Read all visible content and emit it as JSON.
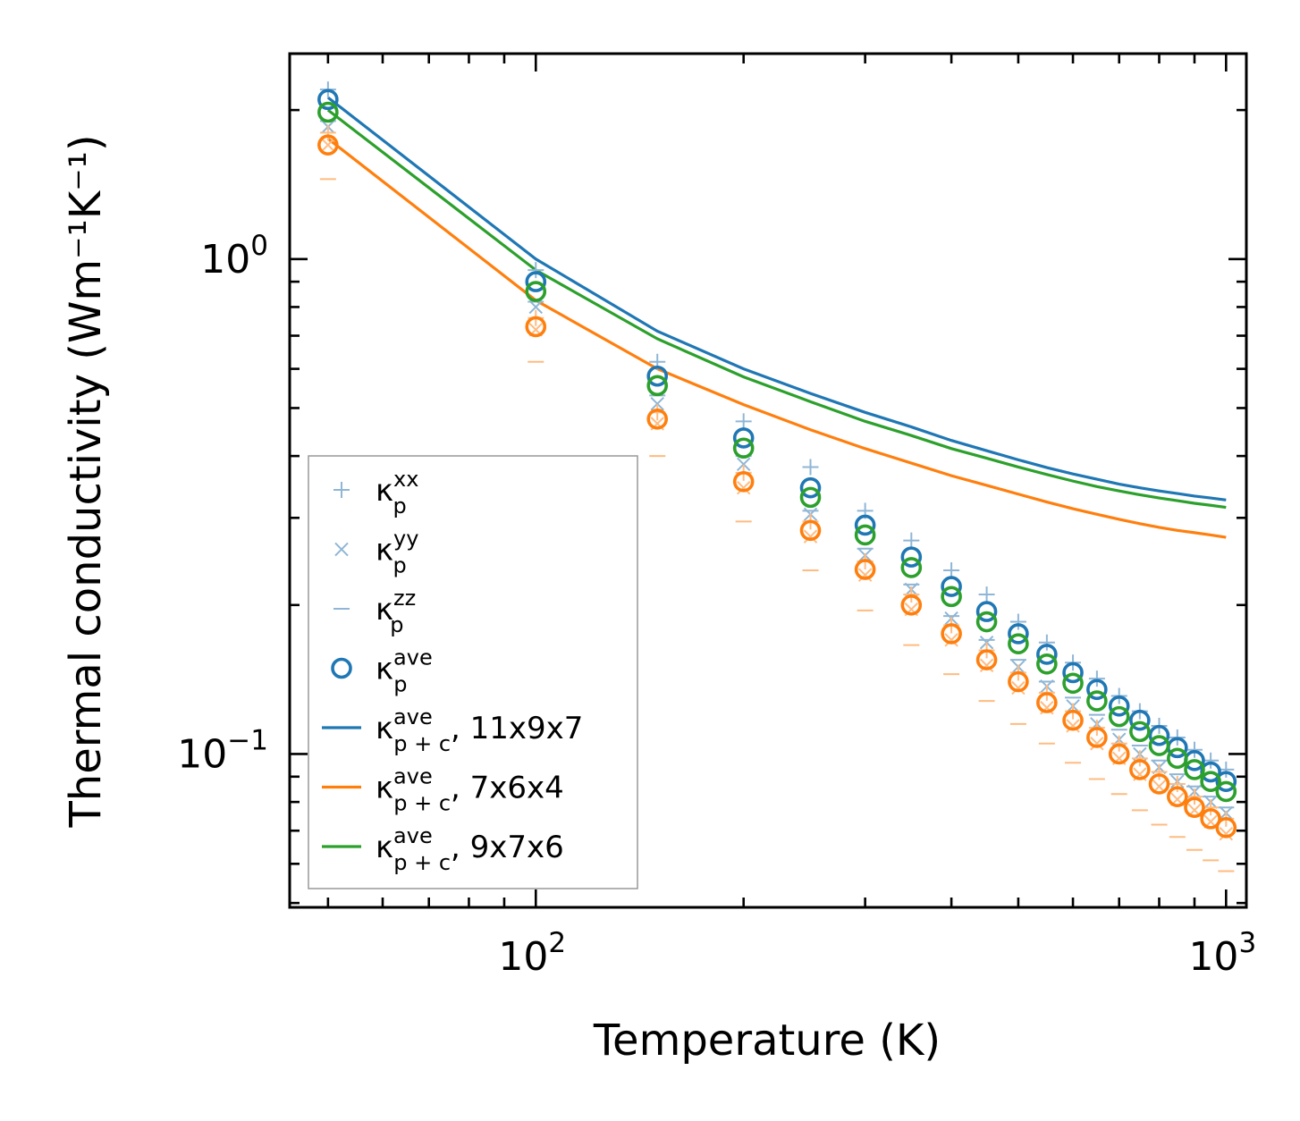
{
  "chart_data": {
    "type": "scatter",
    "title": "",
    "xlabel": "Temperature (K)",
    "ylabel": "Thermal conductivity (Wm⁻¹K⁻¹)",
    "xscale": "log",
    "yscale": "log",
    "xlim": [
      44,
      1070
    ],
    "ylim": [
      0.049,
      2.6
    ],
    "x_ticks": [
      {
        "value": 100,
        "base": "10",
        "exp": "2"
      },
      {
        "value": 1000,
        "base": "10",
        "exp": "3"
      }
    ],
    "y_ticks": [
      {
        "value": 1,
        "base": "10",
        "exp": "0"
      },
      {
        "value": 0.1,
        "base": "10",
        "exp": "−1"
      }
    ],
    "x": [
      50,
      100,
      150,
      200,
      250,
      300,
      350,
      400,
      450,
      500,
      550,
      600,
      650,
      700,
      750,
      800,
      850,
      900,
      950,
      1000
    ],
    "colors": {
      "blue": "#1f77b4",
      "orange": "#ff7f0e",
      "green": "#2ca02c",
      "light_blue": "#8fb6d6",
      "light_orange": "#ffbb80"
    },
    "point_series": [
      {
        "name": "κ_p^xx 11x9x7",
        "marker": "plus",
        "color": "#8fb6d6",
        "values": [
          2.2,
          0.95,
          0.62,
          0.47,
          0.38,
          0.31,
          0.27,
          0.235,
          0.21,
          0.185,
          0.168,
          0.153,
          0.142,
          0.131,
          0.122,
          0.114,
          0.108,
          0.102,
          0.097,
          0.093
        ]
      },
      {
        "name": "κ_p^yy 11x9x7",
        "marker": "x",
        "color": "#8fb6d6",
        "values": [
          1.85,
          0.8,
          0.51,
          0.385,
          0.305,
          0.252,
          0.215,
          0.188,
          0.168,
          0.15,
          0.137,
          0.125,
          0.115,
          0.107,
          0.1,
          0.094,
          0.088,
          0.084,
          0.08,
          0.076
        ]
      },
      {
        "name": "κ_p^zz 11x9x7",
        "marker": "dash",
        "color": "#8fb6d6",
        "values": [
          1.9,
          0.82,
          0.53,
          0.4,
          0.31,
          0.26,
          0.22,
          0.19,
          0.17,
          0.155,
          0.14,
          0.13,
          0.12,
          0.112,
          0.104,
          0.097,
          0.091,
          0.086,
          0.082,
          0.078
        ]
      },
      {
        "name": "κ_p^xx 7x6x4",
        "marker": "plus",
        "color": "#ffbb80",
        "values": [
          1.8,
          0.76,
          0.49,
          0.37,
          0.295,
          0.245,
          0.21,
          0.182,
          0.162,
          0.146,
          0.133,
          0.122,
          0.113,
          0.105,
          0.098,
          0.092,
          0.087,
          0.082,
          0.078,
          0.074
        ]
      },
      {
        "name": "κ_p^yy 7x6x4",
        "marker": "x",
        "color": "#ffbb80",
        "values": [
          1.7,
          0.72,
          0.465,
          0.345,
          0.275,
          0.23,
          0.196,
          0.17,
          0.151,
          0.136,
          0.124,
          0.114,
          0.105,
          0.098,
          0.091,
          0.086,
          0.081,
          0.077,
          0.073,
          0.069
        ]
      },
      {
        "name": "κ_p^zz 7x6x4",
        "marker": "dash",
        "color": "#ffbb80",
        "values": [
          1.45,
          0.62,
          0.4,
          0.295,
          0.235,
          0.195,
          0.166,
          0.145,
          0.128,
          0.115,
          0.105,
          0.096,
          0.089,
          0.083,
          0.077,
          0.072,
          0.068,
          0.064,
          0.061,
          0.058
        ]
      },
      {
        "name": "κ_p^ave 11x9x7",
        "marker": "circle",
        "color": "#1f77b4",
        "values": [
          2.1,
          0.9,
          0.58,
          0.435,
          0.345,
          0.29,
          0.25,
          0.218,
          0.194,
          0.175,
          0.159,
          0.146,
          0.135,
          0.125,
          0.117,
          0.109,
          0.103,
          0.097,
          0.092,
          0.088
        ]
      },
      {
        "name": "κ_p^ave 9x7x6",
        "marker": "circle",
        "color": "#2ca02c",
        "values": [
          1.98,
          0.86,
          0.555,
          0.415,
          0.33,
          0.277,
          0.238,
          0.208,
          0.185,
          0.167,
          0.152,
          0.139,
          0.128,
          0.119,
          0.111,
          0.104,
          0.098,
          0.093,
          0.088,
          0.084
        ]
      },
      {
        "name": "κ_p^ave 7x6x4",
        "marker": "circle",
        "color": "#ff7f0e",
        "values": [
          1.7,
          0.73,
          0.475,
          0.355,
          0.283,
          0.236,
          0.2,
          0.175,
          0.155,
          0.14,
          0.127,
          0.117,
          0.108,
          0.1,
          0.093,
          0.087,
          0.082,
          0.078,
          0.074,
          0.071
        ]
      }
    ],
    "line_series": [
      {
        "name": "κ_p+c^ave, 11x9x7",
        "color": "#1f77b4",
        "values": [
          2.12,
          1.0,
          0.715,
          0.6,
          0.535,
          0.49,
          0.458,
          0.43,
          0.41,
          0.393,
          0.379,
          0.368,
          0.359,
          0.351,
          0.345,
          0.34,
          0.336,
          0.332,
          0.329,
          0.326
        ]
      },
      {
        "name": "κ_p+c^ave, 9x7x6",
        "color": "#2ca02c",
        "values": [
          2.0,
          0.95,
          0.69,
          0.578,
          0.515,
          0.47,
          0.44,
          0.414,
          0.396,
          0.38,
          0.367,
          0.356,
          0.347,
          0.34,
          0.334,
          0.329,
          0.325,
          0.321,
          0.318,
          0.315
        ]
      },
      {
        "name": "κ_p+c^ave, 7x6x4",
        "color": "#ff7f0e",
        "values": [
          1.75,
          0.825,
          0.6,
          0.508,
          0.452,
          0.414,
          0.387,
          0.365,
          0.349,
          0.335,
          0.323,
          0.313,
          0.305,
          0.298,
          0.292,
          0.287,
          0.283,
          0.28,
          0.277,
          0.274
        ]
      }
    ],
    "legend": {
      "position": "lower-left",
      "entries": [
        {
          "marker": "plus",
          "color": "#8fb6d6",
          "label": "κ",
          "sub": "p",
          "sup": "xx",
          "suffix": ""
        },
        {
          "marker": "x",
          "color": "#8fb6d6",
          "label": "κ",
          "sub": "p",
          "sup": "yy",
          "suffix": ""
        },
        {
          "marker": "dash",
          "color": "#8fb6d6",
          "label": "κ",
          "sub": "p",
          "sup": "zz",
          "suffix": ""
        },
        {
          "marker": "circle",
          "color": "#1f77b4",
          "label": "κ",
          "sub": "p",
          "sup": "ave",
          "suffix": ""
        },
        {
          "marker": "line",
          "color": "#1f77b4",
          "label": "κ",
          "sub": "p + c",
          "sup": "ave",
          "suffix": ", 11x9x7"
        },
        {
          "marker": "line",
          "color": "#ff7f0e",
          "label": "κ",
          "sub": "p + c",
          "sup": "ave",
          "suffix": ", 7x6x4"
        },
        {
          "marker": "line",
          "color": "#2ca02c",
          "label": "κ",
          "sub": "p + c",
          "sup": "ave",
          "suffix": ", 9x7x6"
        }
      ]
    }
  }
}
